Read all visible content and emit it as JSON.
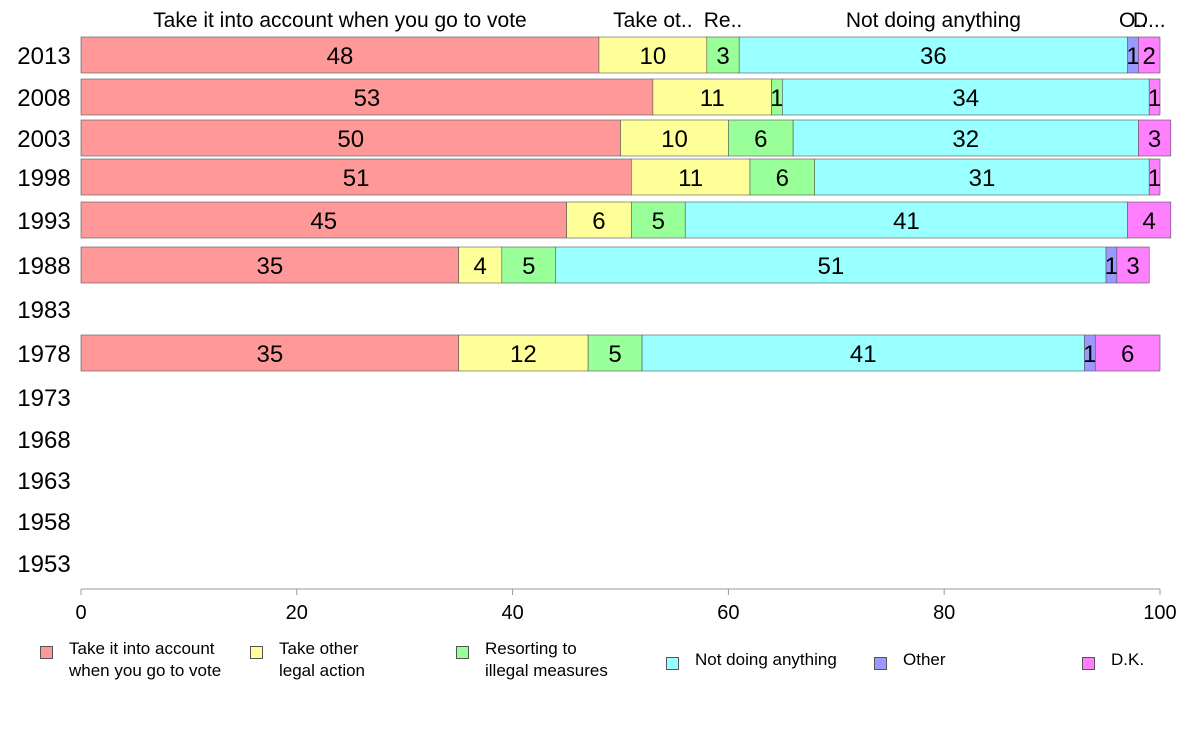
{
  "chart_data": {
    "type": "bar",
    "orientation": "horizontal",
    "stacked": true,
    "categories": [
      "2013",
      "2008",
      "2003",
      "1998",
      "1993",
      "1988",
      "1983",
      "1978",
      "1973",
      "1968",
      "1963",
      "1958",
      "1953"
    ],
    "series": [
      {
        "name": "Take it into account\nwhen you go to vote",
        "top_label": "Take it into account when you go to vote",
        "color": "#ff9999",
        "values": [
          48,
          53,
          50,
          51,
          45,
          35,
          null,
          35,
          null,
          null,
          null,
          null,
          null
        ]
      },
      {
        "name": "Take other\nlegal action",
        "top_label": "Take ot..",
        "color": "#ffff99",
        "values": [
          10,
          11,
          10,
          11,
          6,
          4,
          null,
          12,
          null,
          null,
          null,
          null,
          null
        ]
      },
      {
        "name": "Resorting to\nillegal measures",
        "top_label": "Re..",
        "color": "#99ff99",
        "values": [
          3,
          1,
          6,
          6,
          5,
          5,
          null,
          5,
          null,
          null,
          null,
          null,
          null
        ]
      },
      {
        "name": "Not doing anything",
        "top_label": "Not doing anything",
        "color": "#99ffff",
        "values": [
          36,
          34,
          32,
          31,
          41,
          51,
          null,
          41,
          null,
          null,
          null,
          null,
          null
        ]
      },
      {
        "name": "Other",
        "top_label": "O..",
        "color": "#9999ff",
        "values": [
          1,
          0,
          0,
          0,
          0,
          1,
          null,
          1,
          null,
          null,
          null,
          null,
          null
        ]
      },
      {
        "name": "D.K.",
        "top_label": "D...",
        "color": "#ff80ff",
        "values": [
          2,
          1,
          3,
          1,
          4,
          3,
          null,
          6,
          null,
          null,
          null,
          null,
          null
        ]
      }
    ],
    "xlim": [
      0,
      100
    ],
    "xticks": [
      0,
      20,
      40,
      60,
      80,
      100
    ],
    "grid": false,
    "legend_position": "bottom"
  }
}
